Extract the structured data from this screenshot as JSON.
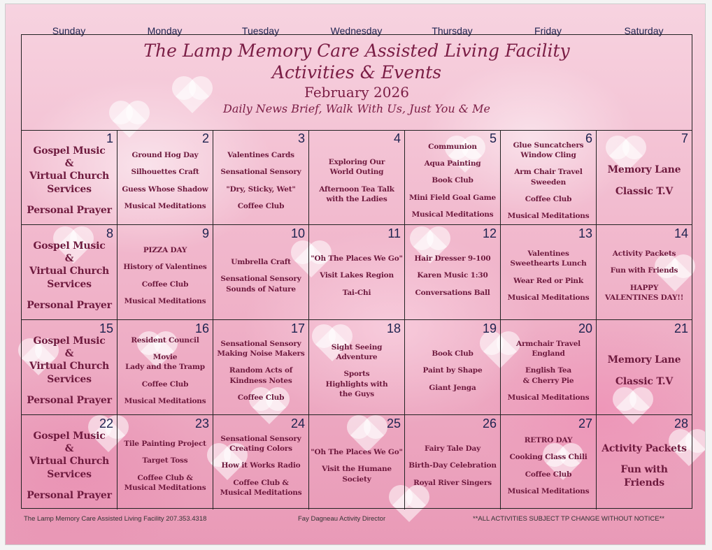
{
  "weekdays": [
    "Sunday",
    "Monday",
    "Tuesday",
    "Wednesday",
    "Thursday",
    "Friday",
    "Saturday"
  ],
  "header": {
    "title": "The Lamp Memory Care Assisted Living Facility",
    "subtitle": "Activities & Events",
    "month": "February 2026",
    "daily": "Daily News Brief, Walk With Us, Just You & Me"
  },
  "weeks": [
    [
      {
        "day": "1",
        "big": true,
        "items": [
          "Gospel Music\n&\nVirtual Church\nServices",
          "Personal Prayer"
        ]
      },
      {
        "day": "2",
        "items": [
          "Ground Hog Day",
          "Silhouettes Craft",
          "Guess Whose Shadow",
          "Musical Meditations"
        ]
      },
      {
        "day": "3",
        "items": [
          "Valentines Cards",
          "Sensational Sensory",
          "\"Dry, Sticky, Wet\"",
          "Coffee Club"
        ]
      },
      {
        "day": "4",
        "items": [
          "Exploring Our\nWorld Outing",
          "Afternoon Tea Talk\nwith the Ladies"
        ]
      },
      {
        "day": "5",
        "items": [
          "Communion",
          "Aqua Painting",
          "Book Club",
          "Mini Field Goal Game",
          "Musical Meditations"
        ]
      },
      {
        "day": "6",
        "items": [
          "Glue Suncatchers\nWindow Cling",
          "Arm Chair Travel\nSweeden",
          "Coffee Club",
          "Musical Meditations"
        ]
      },
      {
        "day": "7",
        "big": true,
        "items": [
          "Memory Lane",
          "Classic T.V"
        ]
      }
    ],
    [
      {
        "day": "8",
        "big": true,
        "items": [
          "Gospel Music\n&\nVirtual Church\nServices",
          "Personal Prayer"
        ]
      },
      {
        "day": "9",
        "items": [
          "PIZZA  DAY",
          "History of Valentines",
          "Coffee Club",
          "Musical Meditations"
        ]
      },
      {
        "day": "10",
        "items": [
          "Umbrella Craft",
          "Sensational Sensory\nSounds of Nature"
        ]
      },
      {
        "day": "11",
        "items": [
          "\"Oh The Places We Go\"",
          "Visit Lakes Region",
          "Tai-Chi"
        ]
      },
      {
        "day": "12",
        "items": [
          "Hair Dresser 9-100",
          "Karen Music 1:30",
          "Conversations Ball"
        ]
      },
      {
        "day": "13",
        "items": [
          "Valentines\nSweethearts Lunch",
          "Wear Red or Pink",
          "Musical Meditations"
        ]
      },
      {
        "day": "14",
        "items": [
          "Activity Packets",
          "Fun with Friends",
          "HAPPY\nVALENTINES DAY!!"
        ]
      }
    ],
    [
      {
        "day": "15",
        "big": true,
        "items": [
          "Gospel Music\n&\nVirtual Church\nServices",
          "Personal Prayer"
        ]
      },
      {
        "day": "16",
        "items": [
          "Resident Council",
          "Movie\nLady and the Tramp",
          "Coffee Club",
          "Musical Meditations"
        ]
      },
      {
        "day": "17",
        "items": [
          "Sensational Sensory\nMaking Noise Makers",
          "Random Acts of\nKindness Notes",
          "Coffee Club"
        ]
      },
      {
        "day": "18",
        "items": [
          "Sight Seeing\nAdventure",
          "Sports\nHighlights with\nthe Guys"
        ]
      },
      {
        "day": "19",
        "items": [
          "Book Club",
          "Paint by Shape",
          "Giant Jenga"
        ]
      },
      {
        "day": "20",
        "items": [
          "Armchair Travel\nEngland",
          "English Tea\n& Cherry Pie",
          "Musical Meditations"
        ]
      },
      {
        "day": "21",
        "big": true,
        "items": [
          "Memory Lane",
          "Classic T.V"
        ]
      }
    ],
    [
      {
        "day": "22",
        "big": true,
        "items": [
          "Gospel Music\n&\nVirtual Church\nServices",
          "Personal Prayer"
        ]
      },
      {
        "day": "23",
        "items": [
          "Tile Painting Project",
          "Target Toss",
          "Coffee Club &\nMusical Meditations"
        ]
      },
      {
        "day": "24",
        "items": [
          "Sensational Sensory\nCreating Colors",
          "How it Works Radio",
          "Coffee Club &\nMusical Meditations"
        ]
      },
      {
        "day": "25",
        "items": [
          "\"Oh The Places We Go\"",
          "Visit the Humane\nSociety"
        ]
      },
      {
        "day": "26",
        "items": [
          "Fairy Tale Day",
          "Birth-Day Celebration",
          "Royal River Singers"
        ]
      },
      {
        "day": "27",
        "items": [
          "RETRO DAY",
          "Cooking Class Chili",
          "Coffee Club",
          "Musical Meditations"
        ]
      },
      {
        "day": "28",
        "big": true,
        "items": [
          "Activity Packets",
          "Fun with\nFriends"
        ]
      }
    ]
  ],
  "footer": {
    "left": "The Lamp Memory Care Assisted Living Facility 207.353.4318",
    "center": "Fay Dagneau Activity Director",
    "right": "**ALL ACTIVITIES SUBJECT TP CHANGE WITHOUT NOTICE**"
  }
}
